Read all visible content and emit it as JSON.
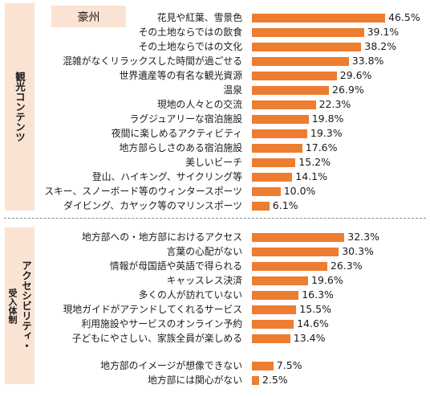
{
  "region_label": "豪州",
  "categories": {
    "content": "観光コンテンツ",
    "accessibility_line1": "アクセシビリティ・",
    "accessibility_line2": "受入体制"
  },
  "colors": {
    "bar": "#ed7d31",
    "category_bg": "#fbe3d4"
  },
  "chart_data": {
    "type": "bar",
    "orientation": "horizontal",
    "unit": "%",
    "categories": [
      "花見や紅葉、雪景色",
      "その土地ならではの飲食",
      "その土地ならではの文化",
      "混雑がなくリラックスした時間が過ごせる",
      "世界遺産等の有名な観光資源",
      "温泉",
      "現地の人々との交流",
      "ラグジュアリーな宿泊施設",
      "夜間に楽しめるアクティビティ",
      "地方部らしさのある宿泊施設",
      "美しいビーチ",
      "登山、ハイキング、サイクリング等",
      "スキー、スノーボード等のウィンタースポーツ",
      "ダイビング、カヤック等のマリンスポーツ",
      "地方部への・地方部におけるアクセス",
      "言葉の心配がない",
      "情報が母国語や英語で得られる",
      "キャッスレス決済",
      "多くの人が訪れていない",
      "現地ガイドがアテンドしてくれるサービス",
      "利用施設やサービスのオンライン予約",
      "子どもにやさしい、家族全員が楽しめる",
      "地方部のイメージが想像できない",
      "地方部には関心がない"
    ],
    "values": [
      46.5,
      39.1,
      38.2,
      33.8,
      29.6,
      26.9,
      22.3,
      19.8,
      19.3,
      17.6,
      15.2,
      14.1,
      10.0,
      6.1,
      32.3,
      30.3,
      26.3,
      19.6,
      16.3,
      15.5,
      14.6,
      13.4,
      7.5,
      2.5
    ],
    "value_labels": [
      "46.5%",
      "39.1%",
      "38.2%",
      "33.8%",
      "29.6%",
      "26.9%",
      "22.3%",
      "19.8%",
      "19.3%",
      "17.6%",
      "15.2%",
      "14.1%",
      "10.0%",
      "6.1%",
      "32.3%",
      "30.3%",
      "26.3%",
      "19.6%",
      "16.3%",
      "15.5%",
      "14.6%",
      "13.4%",
      "7.5%",
      "2.5%"
    ],
    "groups": [
      {
        "category": "観光コンテンツ",
        "count": 14
      },
      {
        "category": "アクセシビリティ・受入体制",
        "count": 8
      },
      {
        "category": "",
        "count": 2
      }
    ]
  }
}
